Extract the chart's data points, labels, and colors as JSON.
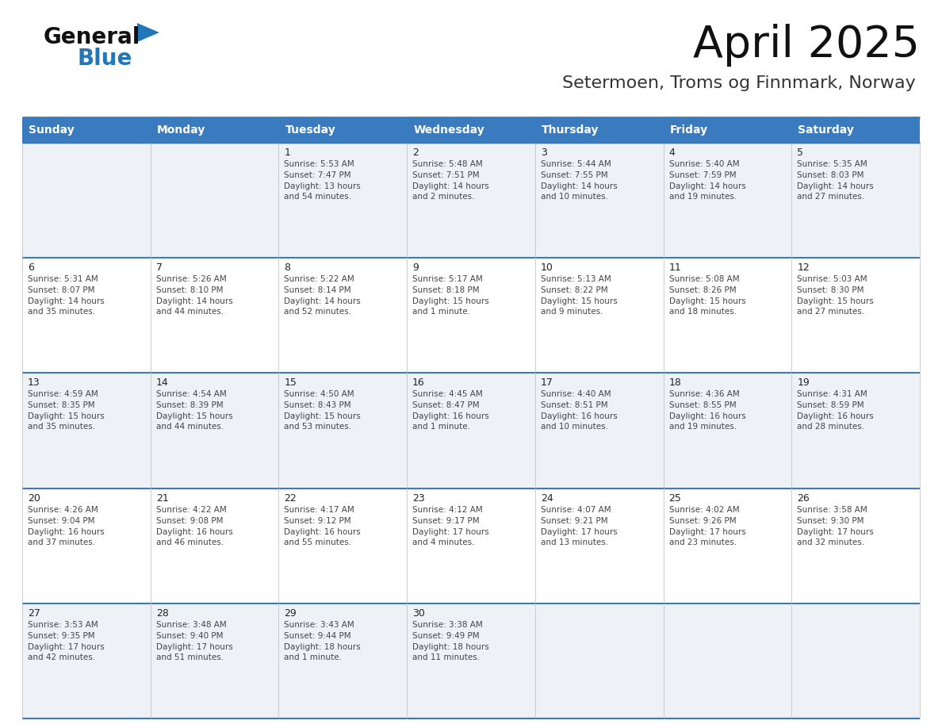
{
  "title": "April 2025",
  "subtitle": "Setermoen, Troms og Finnmark, Norway",
  "header_color": "#3a7bbf",
  "header_text_color": "#ffffff",
  "cell_bg_light": "#eef2f7",
  "cell_bg_white": "#ffffff",
  "border_color": "#3a7bbf",
  "text_color_dark": "#222222",
  "text_color_body": "#444444",
  "day_headers": [
    "Sunday",
    "Monday",
    "Tuesday",
    "Wednesday",
    "Thursday",
    "Friday",
    "Saturday"
  ],
  "days": [
    {
      "date": 1,
      "col": 2,
      "row": 0,
      "sunrise": "5:53 AM",
      "sunset": "7:47 PM",
      "daylight": "13 hours\nand 54 minutes."
    },
    {
      "date": 2,
      "col": 3,
      "row": 0,
      "sunrise": "5:48 AM",
      "sunset": "7:51 PM",
      "daylight": "14 hours\nand 2 minutes."
    },
    {
      "date": 3,
      "col": 4,
      "row": 0,
      "sunrise": "5:44 AM",
      "sunset": "7:55 PM",
      "daylight": "14 hours\nand 10 minutes."
    },
    {
      "date": 4,
      "col": 5,
      "row": 0,
      "sunrise": "5:40 AM",
      "sunset": "7:59 PM",
      "daylight": "14 hours\nand 19 minutes."
    },
    {
      "date": 5,
      "col": 6,
      "row": 0,
      "sunrise": "5:35 AM",
      "sunset": "8:03 PM",
      "daylight": "14 hours\nand 27 minutes."
    },
    {
      "date": 6,
      "col": 0,
      "row": 1,
      "sunrise": "5:31 AM",
      "sunset": "8:07 PM",
      "daylight": "14 hours\nand 35 minutes."
    },
    {
      "date": 7,
      "col": 1,
      "row": 1,
      "sunrise": "5:26 AM",
      "sunset": "8:10 PM",
      "daylight": "14 hours\nand 44 minutes."
    },
    {
      "date": 8,
      "col": 2,
      "row": 1,
      "sunrise": "5:22 AM",
      "sunset": "8:14 PM",
      "daylight": "14 hours\nand 52 minutes."
    },
    {
      "date": 9,
      "col": 3,
      "row": 1,
      "sunrise": "5:17 AM",
      "sunset": "8:18 PM",
      "daylight": "15 hours\nand 1 minute."
    },
    {
      "date": 10,
      "col": 4,
      "row": 1,
      "sunrise": "5:13 AM",
      "sunset": "8:22 PM",
      "daylight": "15 hours\nand 9 minutes."
    },
    {
      "date": 11,
      "col": 5,
      "row": 1,
      "sunrise": "5:08 AM",
      "sunset": "8:26 PM",
      "daylight": "15 hours\nand 18 minutes."
    },
    {
      "date": 12,
      "col": 6,
      "row": 1,
      "sunrise": "5:03 AM",
      "sunset": "8:30 PM",
      "daylight": "15 hours\nand 27 minutes."
    },
    {
      "date": 13,
      "col": 0,
      "row": 2,
      "sunrise": "4:59 AM",
      "sunset": "8:35 PM",
      "daylight": "15 hours\nand 35 minutes."
    },
    {
      "date": 14,
      "col": 1,
      "row": 2,
      "sunrise": "4:54 AM",
      "sunset": "8:39 PM",
      "daylight": "15 hours\nand 44 minutes."
    },
    {
      "date": 15,
      "col": 2,
      "row": 2,
      "sunrise": "4:50 AM",
      "sunset": "8:43 PM",
      "daylight": "15 hours\nand 53 minutes."
    },
    {
      "date": 16,
      "col": 3,
      "row": 2,
      "sunrise": "4:45 AM",
      "sunset": "8:47 PM",
      "daylight": "16 hours\nand 1 minute."
    },
    {
      "date": 17,
      "col": 4,
      "row": 2,
      "sunrise": "4:40 AM",
      "sunset": "8:51 PM",
      "daylight": "16 hours\nand 10 minutes."
    },
    {
      "date": 18,
      "col": 5,
      "row": 2,
      "sunrise": "4:36 AM",
      "sunset": "8:55 PM",
      "daylight": "16 hours\nand 19 minutes."
    },
    {
      "date": 19,
      "col": 6,
      "row": 2,
      "sunrise": "4:31 AM",
      "sunset": "8:59 PM",
      "daylight": "16 hours\nand 28 minutes."
    },
    {
      "date": 20,
      "col": 0,
      "row": 3,
      "sunrise": "4:26 AM",
      "sunset": "9:04 PM",
      "daylight": "16 hours\nand 37 minutes."
    },
    {
      "date": 21,
      "col": 1,
      "row": 3,
      "sunrise": "4:22 AM",
      "sunset": "9:08 PM",
      "daylight": "16 hours\nand 46 minutes."
    },
    {
      "date": 22,
      "col": 2,
      "row": 3,
      "sunrise": "4:17 AM",
      "sunset": "9:12 PM",
      "daylight": "16 hours\nand 55 minutes."
    },
    {
      "date": 23,
      "col": 3,
      "row": 3,
      "sunrise": "4:12 AM",
      "sunset": "9:17 PM",
      "daylight": "17 hours\nand 4 minutes."
    },
    {
      "date": 24,
      "col": 4,
      "row": 3,
      "sunrise": "4:07 AM",
      "sunset": "9:21 PM",
      "daylight": "17 hours\nand 13 minutes."
    },
    {
      "date": 25,
      "col": 5,
      "row": 3,
      "sunrise": "4:02 AM",
      "sunset": "9:26 PM",
      "daylight": "17 hours\nand 23 minutes."
    },
    {
      "date": 26,
      "col": 6,
      "row": 3,
      "sunrise": "3:58 AM",
      "sunset": "9:30 PM",
      "daylight": "17 hours\nand 32 minutes."
    },
    {
      "date": 27,
      "col": 0,
      "row": 4,
      "sunrise": "3:53 AM",
      "sunset": "9:35 PM",
      "daylight": "17 hours\nand 42 minutes."
    },
    {
      "date": 28,
      "col": 1,
      "row": 4,
      "sunrise": "3:48 AM",
      "sunset": "9:40 PM",
      "daylight": "17 hours\nand 51 minutes."
    },
    {
      "date": 29,
      "col": 2,
      "row": 4,
      "sunrise": "3:43 AM",
      "sunset": "9:44 PM",
      "daylight": "18 hours\nand 1 minute."
    },
    {
      "date": 30,
      "col": 3,
      "row": 4,
      "sunrise": "3:38 AM",
      "sunset": "9:49 PM",
      "daylight": "18 hours\nand 11 minutes."
    }
  ],
  "logo_color": "#2277bb"
}
